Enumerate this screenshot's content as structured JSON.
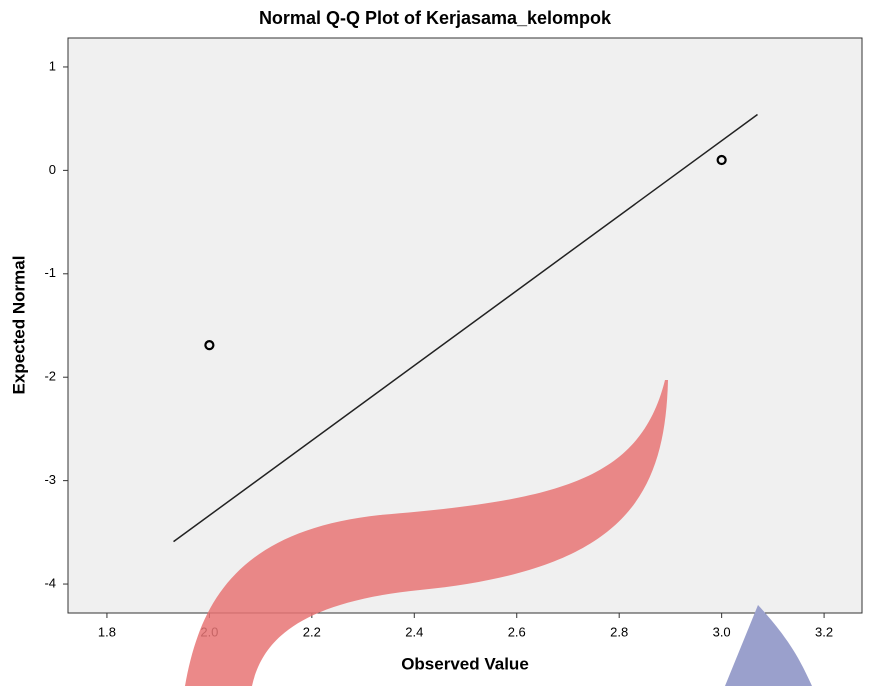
{
  "chart_data": {
    "type": "scatter",
    "title": "Normal Q-Q Plot of Kerjasama_kelompok",
    "x_label": "Observed Value",
    "y_label": "Expected Normal",
    "x": [
      2.0,
      3.0
    ],
    "y": [
      -1.69,
      0.1
    ],
    "color": "#000000",
    "reference_line": {
      "x": [
        1.93,
        3.07
      ],
      "y": [
        -3.59,
        0.54
      ],
      "color": "#222222"
    },
    "xlim": [
      1.724,
      3.274
    ],
    "xticks": [
      1.8,
      {
        "value": 2,
        "label": "2.0"
      },
      2.2,
      2.4,
      2.6,
      2.8,
      {
        "value": 3,
        "label": "3.0"
      },
      3.2
    ],
    "ylim": [
      -4.28,
      1.28
    ],
    "yticks": [
      1,
      0,
      -1,
      -2,
      -3,
      -4
    ],
    "grid": false
  }
}
